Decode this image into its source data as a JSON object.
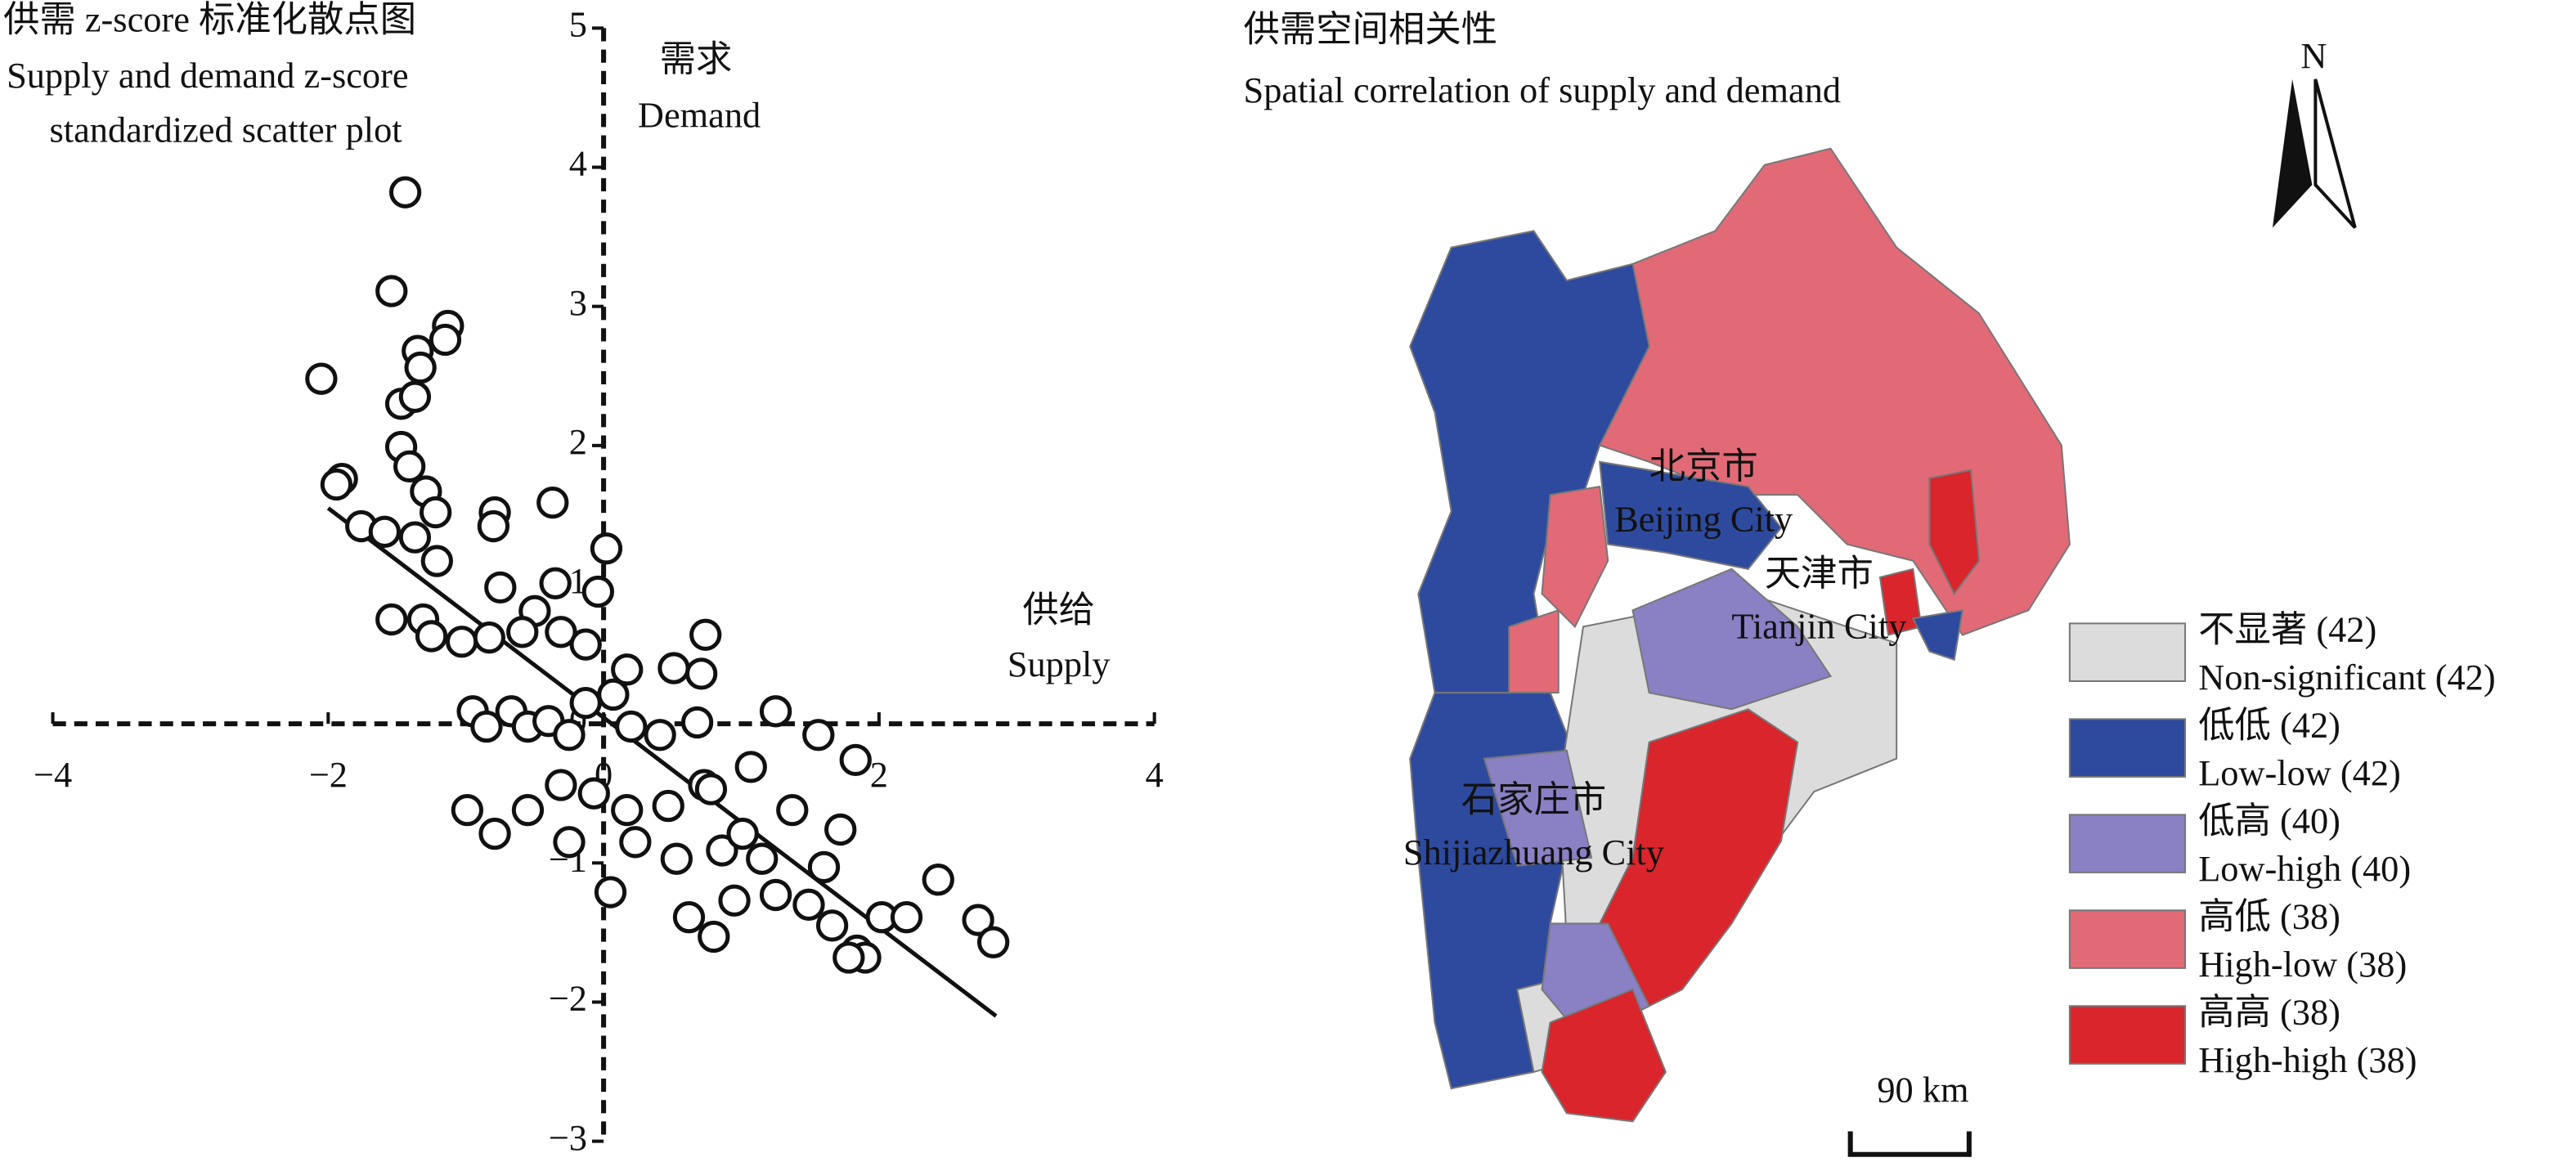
{
  "chart_data": [
    {
      "type": "scatter",
      "title": "供需 z-score 标准化散点图",
      "subtitle_lines": [
        "Supply and demand z-score",
        "standardized scatter plot"
      ],
      "ylabel": "需求",
      "ylabel_en": "Demand",
      "xlabel": "供给",
      "xlabel_en": "Supply",
      "xlim": [
        -4,
        4
      ],
      "ylim": [
        -3,
        5
      ],
      "xticks": [
        {
          "value": -4,
          "label": "−4"
        },
        {
          "value": -2,
          "label": "−2"
        },
        0,
        2,
        4
      ],
      "yticks": [
        {
          "value": -3,
          "label": "−3"
        },
        {
          "value": -2,
          "label": "−2"
        },
        {
          "value": -1,
          "label": "−1"
        },
        0,
        1,
        2,
        3,
        4,
        5
      ],
      "x": [
        -1.44,
        -1.54,
        -1.13,
        -1.15,
        -2.05,
        -1.35,
        -1.33,
        -1.47,
        -1.37,
        -1.47,
        -1.41,
        -1.9,
        -1.94,
        -1.29,
        -1.22,
        -0.79,
        -0.8,
        -0.37,
        -1.76,
        -1.59,
        -1.37,
        -1.21,
        0.02,
        -0.75,
        -0.35,
        -0.04,
        -1.54,
        -1.31,
        -1.25,
        -1.03,
        -0.83,
        -0.5,
        -0.59,
        -0.31,
        -0.13,
        0.74,
        0.51,
        0.71,
        0.17,
        0.07,
        -0.95,
        -0.85,
        -0.67,
        -0.55,
        -0.4,
        -0.25,
        -0.13,
        0.2,
        0.41,
        0.68,
        1.25,
        1.56,
        1.83,
        1.07,
        0.73,
        0.78,
        -0.99,
        -0.79,
        -0.55,
        -0.31,
        -0.07,
        0.17,
        0.47,
        -0.25,
        0.05,
        0.23,
        0.53,
        0.86,
        1.15,
        1.37,
        1.72,
        1.6,
        0.62,
        0.8,
        0.95,
        1.49,
        1.66,
        1.84,
        1.9,
        2.02,
        2.2,
        2.43,
        2.72,
        2.83,
        1.25,
        1.78,
        1.01
      ],
      "values": [
        3.82,
        3.11,
        2.86,
        2.76,
        2.48,
        2.68,
        2.56,
        2.3,
        2.35,
        1.99,
        1.85,
        1.76,
        1.72,
        1.67,
        1.52,
        1.52,
        1.42,
        1.59,
        1.42,
        1.38,
        1.34,
        1.17,
        1.26,
        0.98,
        1.01,
        0.95,
        0.75,
        0.75,
        0.63,
        0.59,
        0.62,
        0.81,
        0.66,
        0.66,
        0.57,
        0.64,
        0.4,
        0.36,
        0.39,
        0.21,
        0.09,
        -0.02,
        0.09,
        -0.02,
        0.02,
        -0.08,
        0.15,
        -0.02,
        -0.08,
        0.01,
        0.09,
        -0.08,
        -0.26,
        -0.31,
        -0.44,
        -0.47,
        -0.62,
        -0.79,
        -0.62,
        -0.44,
        -0.5,
        -0.62,
        -0.59,
        -0.85,
        -1.21,
        -0.85,
        -0.97,
        -0.91,
        -0.97,
        -0.62,
        -0.76,
        -1.03,
        -1.39,
        -1.53,
        -1.27,
        -1.3,
        -1.45,
        -1.63,
        -1.68,
        -1.39,
        -1.39,
        -1.12,
        -1.41,
        -1.57,
        -1.23,
        -1.68,
        -0.79
      ],
      "trend_line": {
        "x": [
          -2,
          2.85
        ],
        "values": [
          1.55,
          -2.1
        ]
      }
    },
    {
      "type": "map",
      "title": "供需空间相关性",
      "subtitle": "Spatial correlation of supply and demand",
      "legend": [
        {
          "label": "不显著 (42)",
          "label_en": "Non-significant (42)",
          "color": "#dcdcdc"
        },
        {
          "label": "低低 (42)",
          "label_en": "Low-low (42)",
          "color": "#2e4a9e"
        },
        {
          "label": "低高 (40)",
          "label_en": "Low-high (40)",
          "color": "#8a80c4"
        },
        {
          "label": "高低 (38)",
          "label_en": "High-low (38)",
          "color": "#e26a77"
        },
        {
          "label": "高高 (38)",
          "label_en": "High-high (38)",
          "color": "#d9252b"
        }
      ],
      "city_labels": [
        {
          "name": "北京市",
          "name_en": "Beijing City"
        },
        {
          "name": "天津市",
          "name_en": "Tianjin City"
        },
        {
          "name": "石家庄市",
          "name_en": "Shijiazhuang City"
        }
      ],
      "north": "N",
      "scale": "90 km"
    }
  ]
}
